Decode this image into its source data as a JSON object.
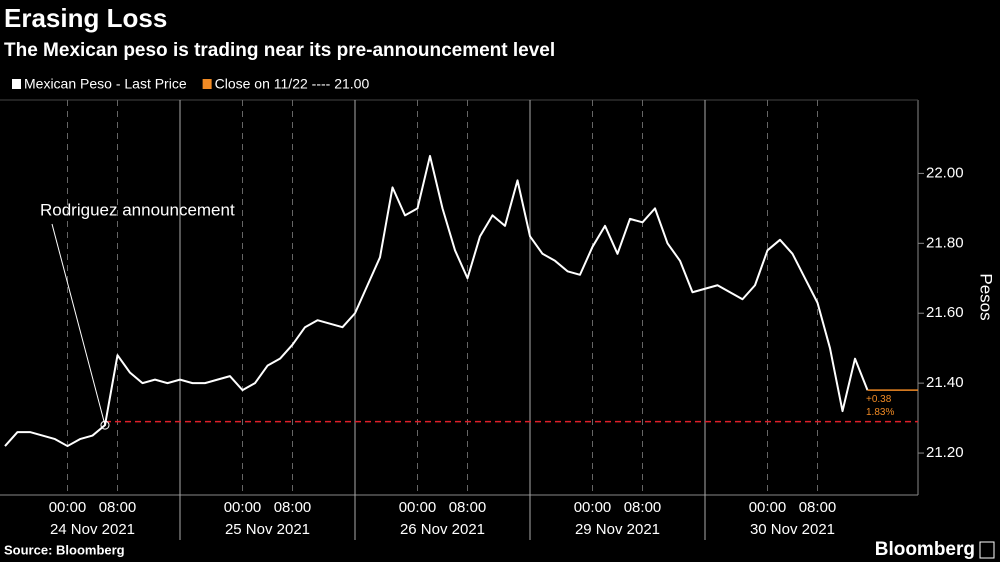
{
  "chart_data": {
    "type": "line",
    "title": "Erasing Loss",
    "subtitle": "The Mexican peso is trading near its pre-announcement level",
    "y_label": "Pesos",
    "source": "Source: Bloomberg",
    "brand": "Bloomberg",
    "annotation": "Rodriguez announcement",
    "change_labels": [
      "+0.38",
      "1.83%"
    ],
    "close_marker": {
      "name": "Close on 11/22 ---- 21.00",
      "color": "#f08a24"
    },
    "reference_line": {
      "value": 21.29,
      "color": "#e0202a"
    },
    "categories": [
      null,
      null,
      null,
      null,
      null,
      "00:00",
      null,
      null,
      null,
      "08:00",
      null,
      null,
      null,
      null,
      null,
      null,
      null,
      null,
      null,
      "00:00",
      null,
      null,
      null,
      "08:00",
      null,
      null,
      null,
      null,
      null,
      null,
      null,
      null,
      null,
      "00:00",
      null,
      null,
      null,
      "08:00",
      null,
      null,
      null,
      null,
      null,
      null,
      null,
      null,
      null,
      "00:00",
      null,
      null,
      null,
      "08:00",
      null,
      null,
      null,
      null,
      null,
      null,
      null,
      null,
      null,
      "00:00",
      null,
      null,
      null,
      "08:00",
      null,
      null,
      null,
      null
    ],
    "x_groups": [
      "24 Nov 2021",
      "25 Nov 2021",
      "26 Nov 2021",
      "29 Nov 2021",
      "30 Nov 2021"
    ],
    "series": [
      {
        "name": "Mexican Peso - Last Price",
        "color": "#ffffff",
        "values": [
          21.22,
          21.26,
          21.26,
          21.25,
          21.24,
          21.22,
          21.24,
          21.25,
          21.28,
          21.48,
          21.43,
          21.4,
          21.41,
          21.4,
          21.41,
          21.4,
          21.4,
          21.41,
          21.42,
          21.38,
          21.4,
          21.45,
          21.47,
          21.51,
          21.56,
          21.58,
          21.57,
          21.56,
          21.6,
          21.68,
          21.76,
          21.96,
          21.88,
          21.9,
          22.05,
          21.9,
          21.78,
          21.7,
          21.82,
          21.88,
          21.85,
          21.98,
          21.82,
          21.77,
          21.75,
          21.72,
          21.71,
          21.79,
          21.85,
          21.77,
          21.87,
          21.86,
          21.9,
          21.8,
          21.75,
          21.66,
          21.67,
          21.68,
          21.66,
          21.64,
          21.68,
          21.78,
          21.81,
          21.77,
          21.7,
          21.63,
          21.5,
          21.32,
          21.47,
          21.38
        ]
      }
    ],
    "ylim": [
      21.08,
      22.21
    ],
    "yticks": [
      {
        "value": 21.2,
        "label": "21.20"
      },
      {
        "value": 21.4,
        "label": "21.40"
      },
      {
        "value": 21.6,
        "label": "21.60"
      },
      {
        "value": 21.8,
        "label": "21.80"
      },
      {
        "value": 22.0,
        "label": "22.00"
      }
    ],
    "grid": true
  }
}
